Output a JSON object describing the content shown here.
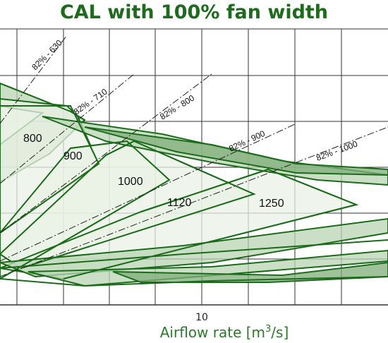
{
  "chart_data": {
    "type": "area",
    "title": "CAL with 100% fan width",
    "xlabel": "Airflow rate [m",
    "xlabel_sup": "3",
    "xlabel_end": "/s]",
    "x_ticks": [
      "10"
    ],
    "grid": true,
    "colors": {
      "title": "#1e6b1e",
      "stroke": "#1a6b1a",
      "fill_light": "#e9f2e6",
      "fill_mid": "#b8d4b3",
      "fill_dark": "#7fae78",
      "grid": "#333333"
    },
    "categories": [
      "800",
      "900",
      "1000",
      "1120",
      "1250"
    ],
    "efficiency_lines": [
      "82% - 630",
      "82% - 710",
      "82% - 800",
      "82% - 900",
      "82% - 1000"
    ]
  }
}
